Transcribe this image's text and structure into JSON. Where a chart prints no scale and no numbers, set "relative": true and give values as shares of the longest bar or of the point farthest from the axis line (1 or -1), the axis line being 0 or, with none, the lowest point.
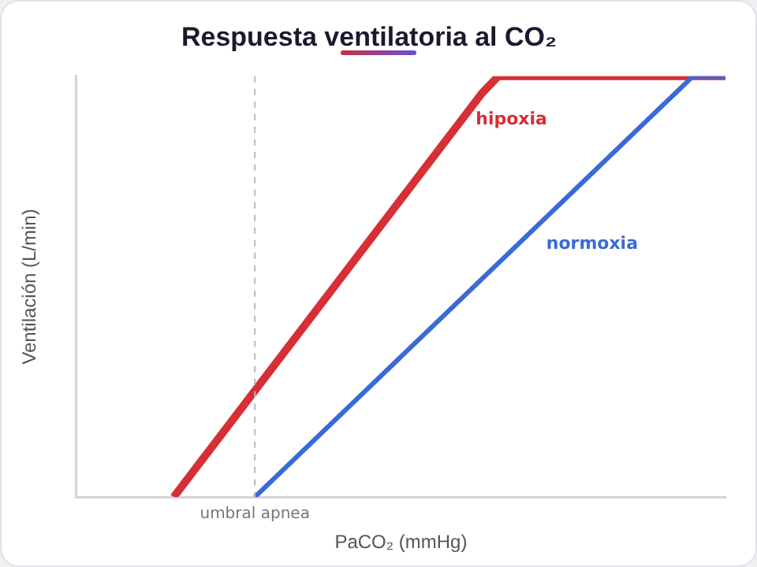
{
  "chart_data": {
    "type": "line",
    "title": "Respuesta ventilatoria al CO₂",
    "xlabel": "PaCO₂ (mmHg)",
    "ylabel": "Ventilación (L/min)",
    "relative": true,
    "legend": false,
    "grid": false,
    "marker": "none",
    "line_style": "solid",
    "categories": [
      null,
      null,
      null,
      null,
      null,
      null,
      null,
      null,
      null,
      null,
      null,
      null,
      null,
      null,
      null,
      null,
      null,
      null,
      null,
      null,
      null,
      null,
      null,
      null,
      null,
      null,
      null,
      null,
      null,
      null,
      null,
      null,
      null,
      null,
      null,
      null,
      null,
      null,
      null,
      null,
      null
    ],
    "series": [
      {
        "name": "hipoxia",
        "color": "#d62f36",
        "values": [
          null,
          null,
          null,
          null,
          null,
          null,
          0,
          null,
          null,
          null,
          null,
          null,
          null,
          null,
          null,
          null,
          null,
          null,
          null,
          null,
          null,
          null,
          null,
          null,
          null,
          0.96,
          1,
          null,
          null,
          null,
          null,
          null,
          null,
          null,
          null,
          null,
          null,
          null,
          null,
          null,
          1
        ]
      },
      {
        "name": "normoxia",
        "color": "#3a6ad9",
        "values": [
          null,
          null,
          null,
          null,
          null,
          null,
          null,
          null,
          null,
          null,
          null,
          0,
          null,
          null,
          null,
          null,
          null,
          null,
          null,
          null,
          null,
          null,
          null,
          null,
          null,
          null,
          null,
          null,
          null,
          null,
          null,
          null,
          null,
          null,
          null,
          null,
          null,
          null,
          1,
          null,
          1
        ]
      }
    ],
    "ref_lines": [
      {
        "axis": "x",
        "label": "umbral apnea",
        "color": "#b8b8c0",
        "line_style": "dashed"
      }
    ]
  }
}
